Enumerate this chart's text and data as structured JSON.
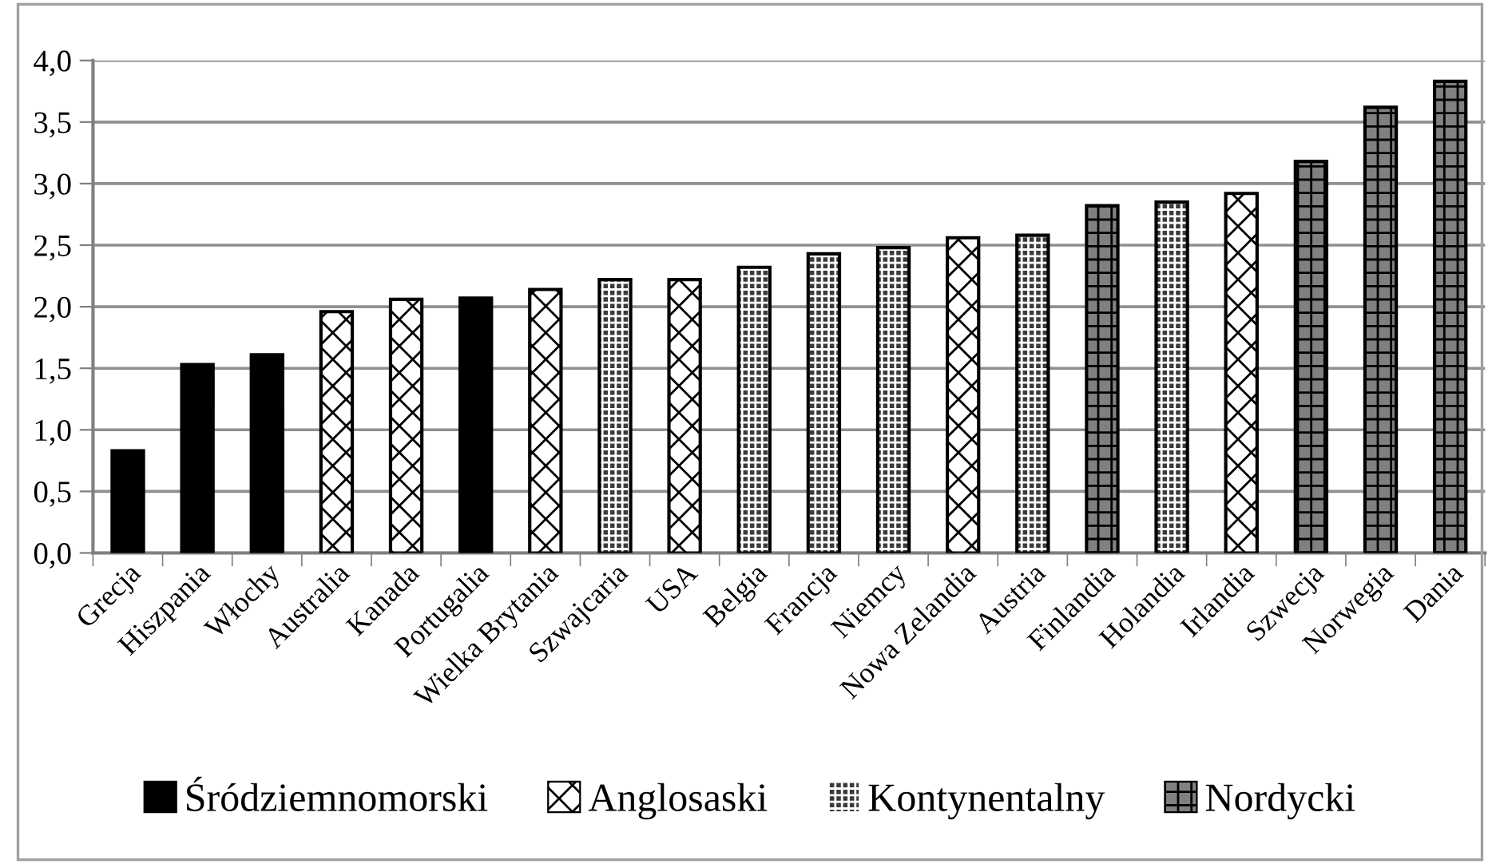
{
  "chart_data": {
    "type": "bar",
    "categories": [
      "Grecja",
      "Hiszpania",
      "Włochy",
      "Australia",
      "Kanada",
      "Portugalia",
      "Wielka Brytania",
      "Szwajcaria",
      "USA",
      "Belgia",
      "Francja",
      "Niemcy",
      "Nowa Zelandia",
      "Austria",
      "Finlandia",
      "Holandia",
      "Irlandia",
      "Szwecja",
      "Norwegia",
      "Dania"
    ],
    "series": [
      {
        "name": "Śródziemnomorski",
        "color": "#000000",
        "values": [
          0.83,
          1.53,
          1.61,
          null,
          null,
          2.07,
          null,
          null,
          null,
          null,
          null,
          null,
          null,
          null,
          null,
          null,
          null,
          null,
          null,
          null
        ]
      },
      {
        "name": "Anglosaski",
        "color": "#ffffff",
        "values": [
          null,
          null,
          null,
          1.96,
          2.06,
          null,
          2.14,
          null,
          2.22,
          null,
          null,
          null,
          2.56,
          null,
          null,
          null,
          2.92,
          null,
          null,
          null
        ]
      },
      {
        "name": "Kontynentalny",
        "color": "#3a3a3a",
        "values": [
          null,
          null,
          null,
          null,
          null,
          null,
          null,
          2.22,
          null,
          2.32,
          2.43,
          2.48,
          null,
          2.58,
          null,
          2.85,
          null,
          null,
          null,
          null
        ]
      },
      {
        "name": "Nordycki",
        "color": "#808080",
        "values": [
          null,
          null,
          null,
          null,
          null,
          null,
          null,
          null,
          null,
          null,
          null,
          null,
          null,
          null,
          2.82,
          null,
          null,
          3.18,
          3.62,
          3.83
        ]
      }
    ],
    "ylim": [
      0,
      4
    ],
    "yticks": [
      {
        "value": 0,
        "label": "0,0"
      },
      {
        "value": 0.5,
        "label": "0,5"
      },
      {
        "value": 1,
        "label": "1,0"
      },
      {
        "value": 1.5,
        "label": "1,5"
      },
      {
        "value": 2,
        "label": "2,0"
      },
      {
        "value": 2.5,
        "label": "2,5"
      },
      {
        "value": 3,
        "label": "3,0"
      },
      {
        "value": 3.5,
        "label": "3,5"
      },
      {
        "value": 4,
        "label": "4,0"
      }
    ],
    "grid": "y",
    "legend": "bottom"
  }
}
